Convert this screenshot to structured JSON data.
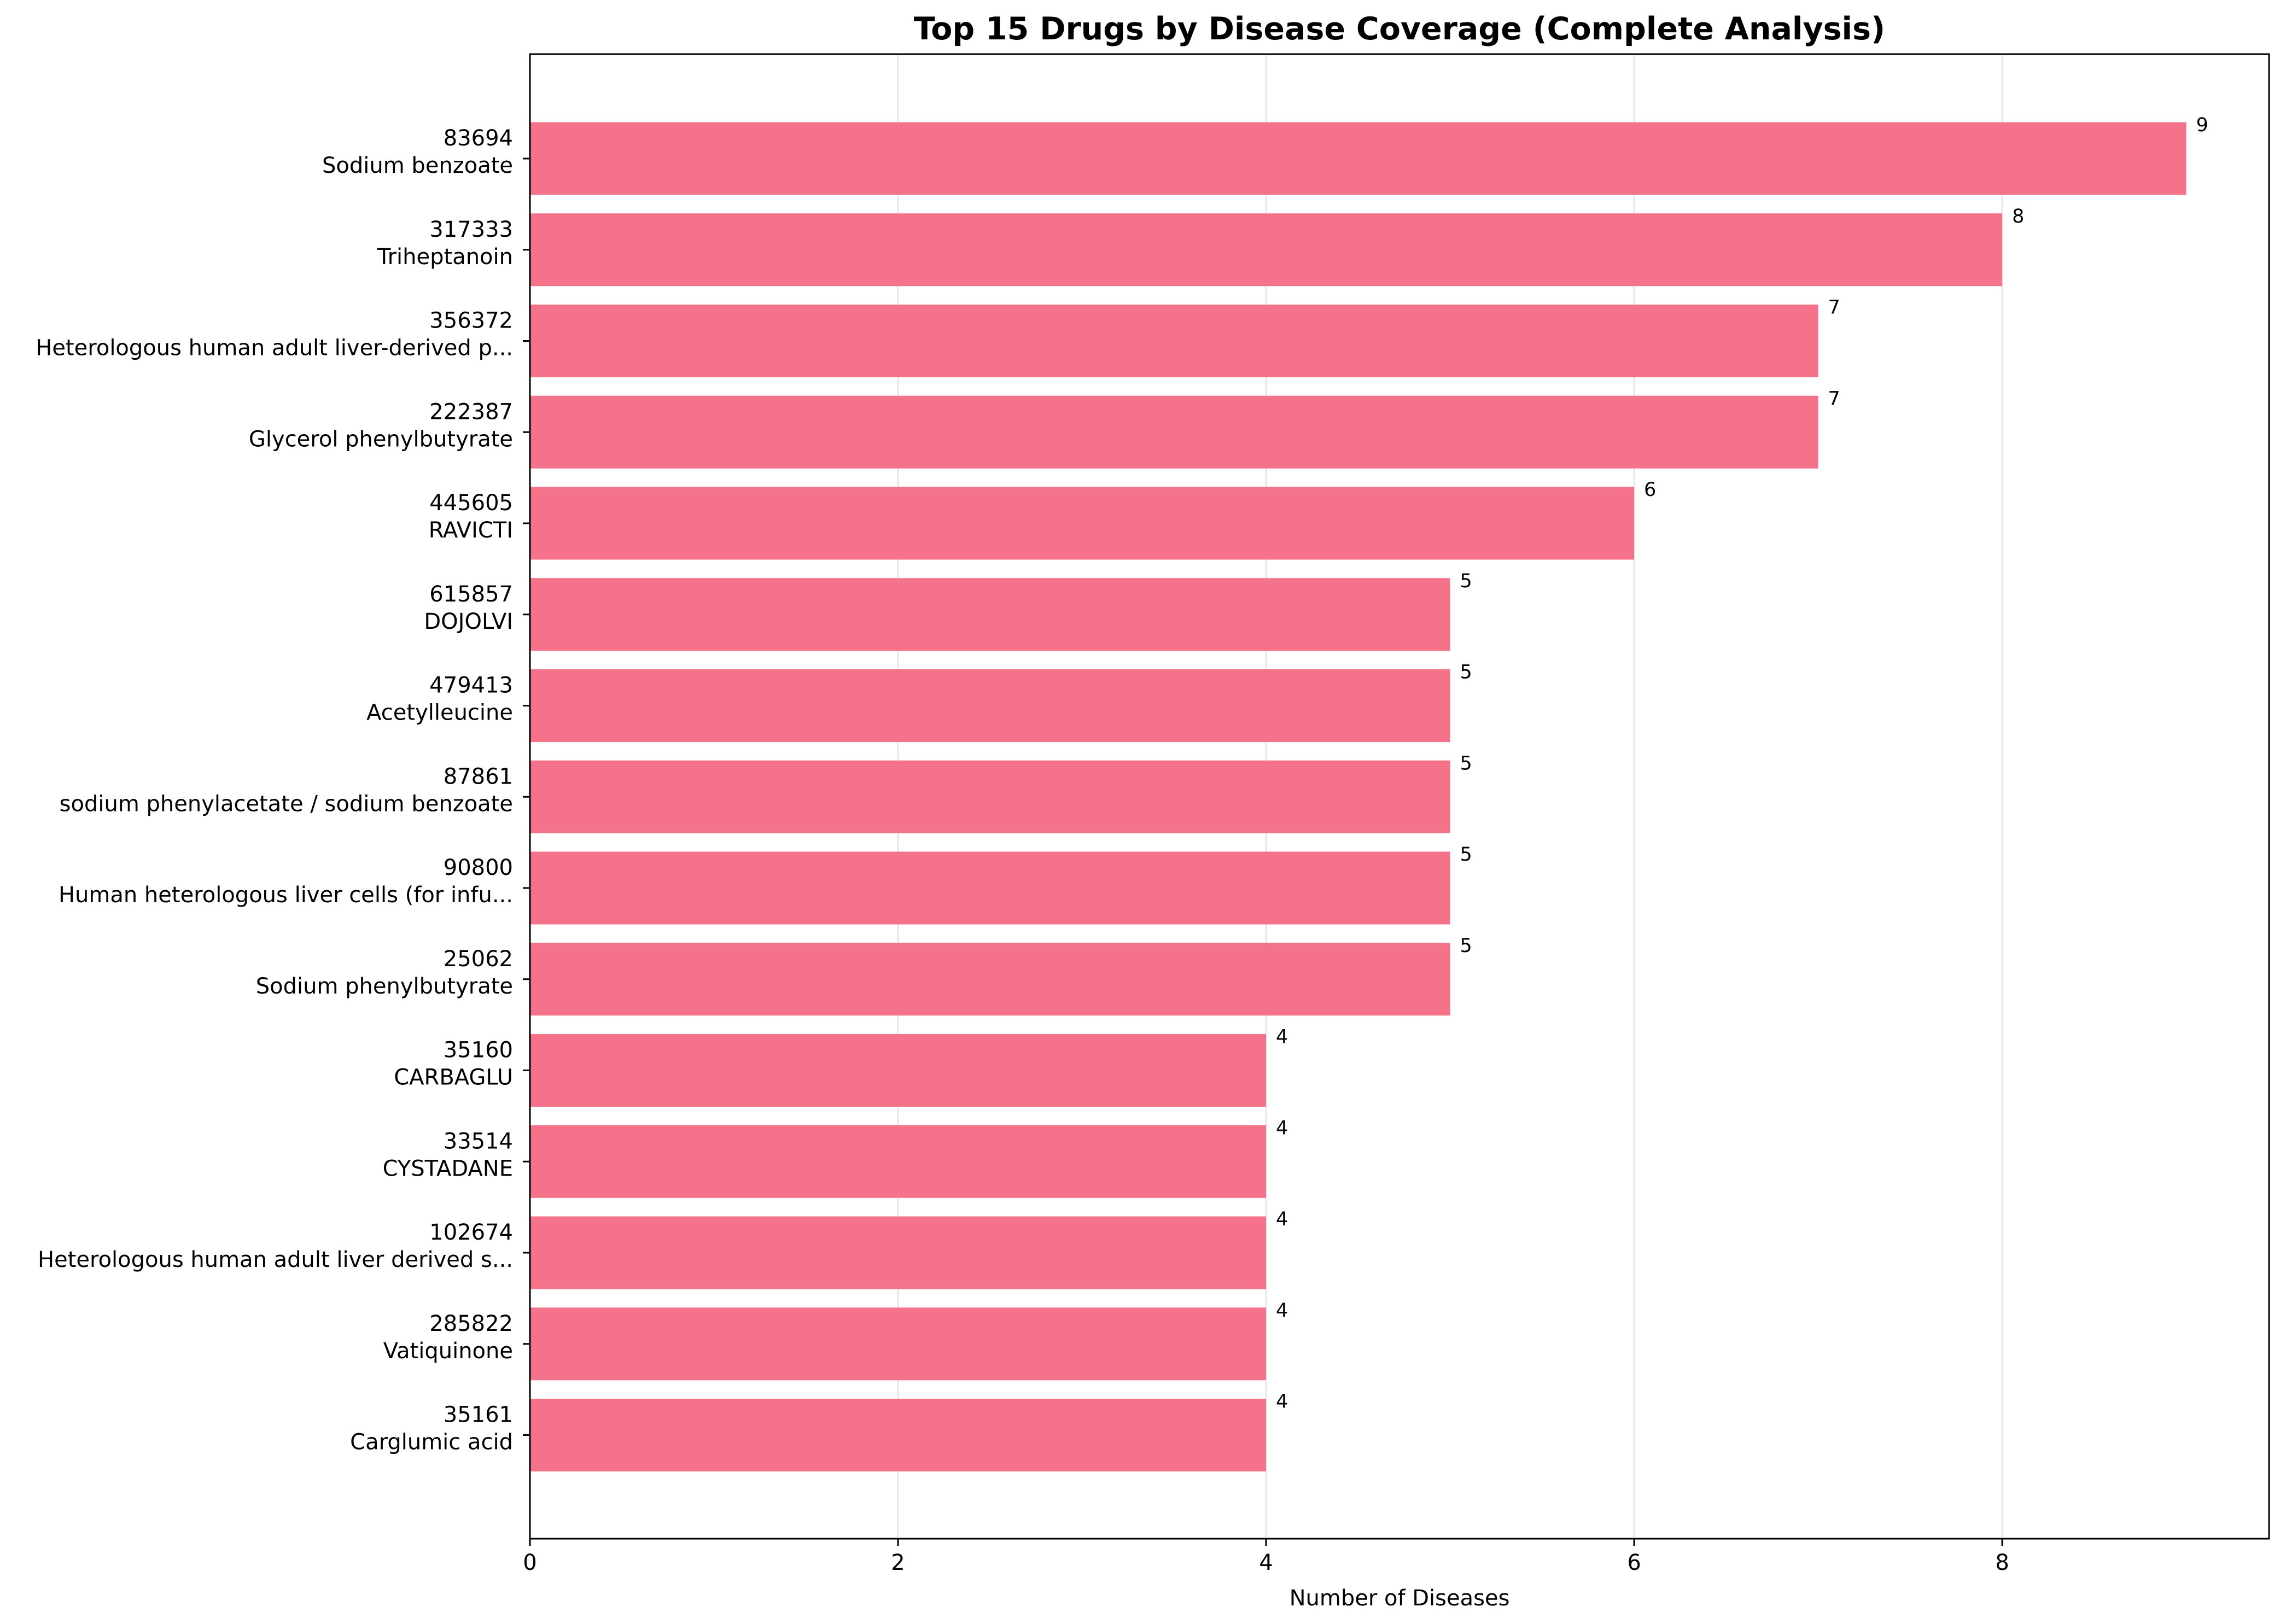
{
  "chart_data": {
    "type": "bar",
    "orientation": "horizontal",
    "title": "Top 15 Drugs by Disease Coverage (Complete Analysis)",
    "xlabel": "Number of Diseases",
    "ylabel": "",
    "xlim": [
      0,
      9.45
    ],
    "xticks": [
      0,
      2,
      4,
      6,
      8
    ],
    "grid": "x",
    "bar_color": "#f5738a",
    "categories": [
      {
        "id": "83694",
        "name": "Sodium benzoate"
      },
      {
        "id": "317333",
        "name": "Triheptanoin"
      },
      {
        "id": "356372",
        "name": "Heterologous human adult liver-derived p..."
      },
      {
        "id": "222387",
        "name": "Glycerol phenylbutyrate"
      },
      {
        "id": "445605",
        "name": "RAVICTI"
      },
      {
        "id": "615857",
        "name": "DOJOLVI"
      },
      {
        "id": "479413",
        "name": "Acetylleucine"
      },
      {
        "id": "87861",
        "name": "sodium phenylacetate / sodium benzoate"
      },
      {
        "id": "90800",
        "name": "Human heterologous liver cells (for infu..."
      },
      {
        "id": "25062",
        "name": "Sodium phenylbutyrate"
      },
      {
        "id": "35160",
        "name": "CARBAGLU"
      },
      {
        "id": "33514",
        "name": "CYSTADANE"
      },
      {
        "id": "102674",
        "name": "Heterologous human adult liver derived s..."
      },
      {
        "id": "285822",
        "name": "Vatiquinone"
      },
      {
        "id": "35161",
        "name": "Carglumic acid"
      }
    ],
    "values": [
      9,
      8,
      7,
      7,
      6,
      5,
      5,
      5,
      5,
      5,
      4,
      4,
      4,
      4,
      4
    ]
  }
}
